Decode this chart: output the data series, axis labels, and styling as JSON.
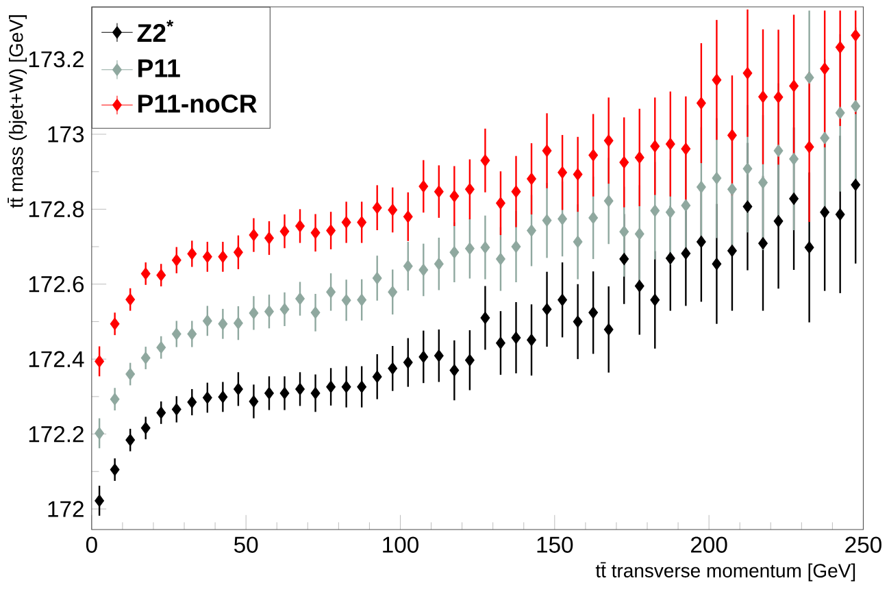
{
  "chart_data": {
    "type": "scatter",
    "xlabel": "tt̄ transverse momentum [GeV]",
    "ylabel": "tt̄ mass (bjet+W) [GeV]",
    "x": [
      2.5,
      7.5,
      12.5,
      17.5,
      22.5,
      27.5,
      32.5,
      37.5,
      42.5,
      47.5,
      52.5,
      57.5,
      62.5,
      67.5,
      72.5,
      77.5,
      82.5,
      87.5,
      92.5,
      97.5,
      102.5,
      107.5,
      112.5,
      117.5,
      122.5,
      127.5,
      132.5,
      137.5,
      142.5,
      147.5,
      152.5,
      157.5,
      162.5,
      167.5,
      172.5,
      177.5,
      182.5,
      187.5,
      192.5,
      197.5,
      202.5,
      207.5,
      212.5,
      217.5,
      222.5,
      227.5,
      232.5,
      237.5,
      242.5,
      247.5
    ],
    "series": [
      {
        "name": "Z2$^{*}$",
        "color": "#000000",
        "values": [
          172.022,
          172.105,
          172.184,
          172.216,
          172.257,
          172.266,
          172.285,
          172.297,
          172.299,
          172.32,
          172.287,
          172.309,
          172.309,
          172.32,
          172.309,
          172.326,
          172.326,
          172.326,
          172.353,
          172.375,
          172.391,
          172.406,
          172.409,
          172.37,
          172.397,
          172.51,
          172.443,
          172.457,
          172.451,
          172.533,
          172.558,
          172.5,
          172.524,
          172.479,
          172.667,
          172.595,
          172.558,
          172.669,
          172.682,
          172.713,
          172.654,
          172.689,
          172.807,
          172.709,
          172.768,
          172.828,
          172.698,
          172.792,
          172.786,
          172.865
        ],
        "errors": [
          0.04,
          0.03,
          0.03,
          0.03,
          0.03,
          0.035,
          0.035,
          0.04,
          0.04,
          0.045,
          0.045,
          0.045,
          0.045,
          0.045,
          0.05,
          0.05,
          0.055,
          0.055,
          0.06,
          0.06,
          0.065,
          0.07,
          0.07,
          0.08,
          0.08,
          0.085,
          0.085,
          0.095,
          0.095,
          0.1,
          0.1,
          0.1,
          0.11,
          0.115,
          0.12,
          0.13,
          0.13,
          0.14,
          0.14,
          0.16,
          0.16,
          0.16,
          0.17,
          0.18,
          0.18,
          0.19,
          0.2,
          0.21,
          0.21,
          0.21
        ]
      },
      {
        "name": "P11",
        "color": "#8fa89f",
        "values": [
          172.202,
          172.293,
          172.36,
          172.403,
          172.431,
          172.467,
          172.467,
          172.502,
          172.494,
          172.496,
          172.523,
          172.527,
          172.533,
          172.561,
          172.524,
          172.579,
          172.557,
          172.558,
          172.616,
          172.579,
          172.648,
          172.638,
          172.654,
          172.685,
          172.695,
          172.698,
          172.667,
          172.7,
          172.743,
          172.77,
          172.774,
          172.713,
          172.777,
          172.822,
          172.74,
          172.734,
          172.796,
          172.792,
          172.81,
          172.859,
          172.883,
          172.853,
          172.908,
          172.871,
          172.956,
          172.934,
          173.151,
          172.99,
          173.057,
          173.075
        ],
        "errors": [
          0.04,
          0.03,
          0.03,
          0.03,
          0.03,
          0.035,
          0.035,
          0.04,
          0.04,
          0.045,
          0.045,
          0.045,
          0.045,
          0.045,
          0.05,
          0.05,
          0.055,
          0.055,
          0.06,
          0.06,
          0.065,
          0.07,
          0.07,
          0.08,
          0.08,
          0.085,
          0.085,
          0.095,
          0.095,
          0.1,
          0.1,
          0.1,
          0.11,
          0.115,
          0.12,
          0.13,
          0.13,
          0.14,
          0.14,
          0.16,
          0.16,
          0.16,
          0.17,
          0.18,
          0.18,
          0.19,
          [
            172.951,
            173.33
          ],
          0.21,
          0.21,
          0.21
        ]
      },
      {
        "name": "P11-noCR",
        "color": "#ff0000",
        "values": [
          172.394,
          172.494,
          172.559,
          172.628,
          172.624,
          172.664,
          172.681,
          172.673,
          172.673,
          172.685,
          172.731,
          172.723,
          172.741,
          172.755,
          172.737,
          172.743,
          172.765,
          172.765,
          172.804,
          172.798,
          172.78,
          172.861,
          172.847,
          172.835,
          172.853,
          172.93,
          172.816,
          172.847,
          172.881,
          172.956,
          172.898,
          172.893,
          172.944,
          172.983,
          172.925,
          172.938,
          172.968,
          172.974,
          172.961,
          173.083,
          173.145,
          172.997,
          173.163,
          173.1,
          173.099,
          173.129,
          172.966,
          173.175,
          173.232,
          173.264
        ],
        "errors": [
          0.04,
          0.03,
          0.03,
          0.03,
          0.03,
          0.035,
          0.035,
          0.04,
          0.04,
          0.045,
          0.045,
          0.045,
          0.045,
          0.045,
          0.05,
          0.05,
          0.055,
          0.055,
          0.06,
          0.06,
          0.065,
          0.07,
          0.07,
          0.08,
          0.08,
          0.085,
          0.085,
          0.095,
          0.095,
          0.1,
          0.1,
          0.1,
          0.11,
          0.115,
          0.12,
          0.13,
          0.13,
          0.14,
          0.14,
          0.16,
          0.16,
          0.16,
          0.17,
          0.18,
          0.18,
          0.19,
          0.2,
          [
            172.965,
            173.33
          ],
          [
            173.022,
            173.33
          ],
          [
            173.054,
            173.33
          ]
        ]
      }
    ],
    "xlim": [
      0,
      250
    ],
    "ylim": [
      171.945,
      173.34
    ],
    "xticks": [
      0,
      50,
      100,
      150,
      200,
      250
    ],
    "yticks": [
      172,
      172.2,
      172.4,
      172.6,
      172.8,
      173,
      173.2
    ],
    "marker": "diamond",
    "legend": "top left",
    "grid": false
  }
}
